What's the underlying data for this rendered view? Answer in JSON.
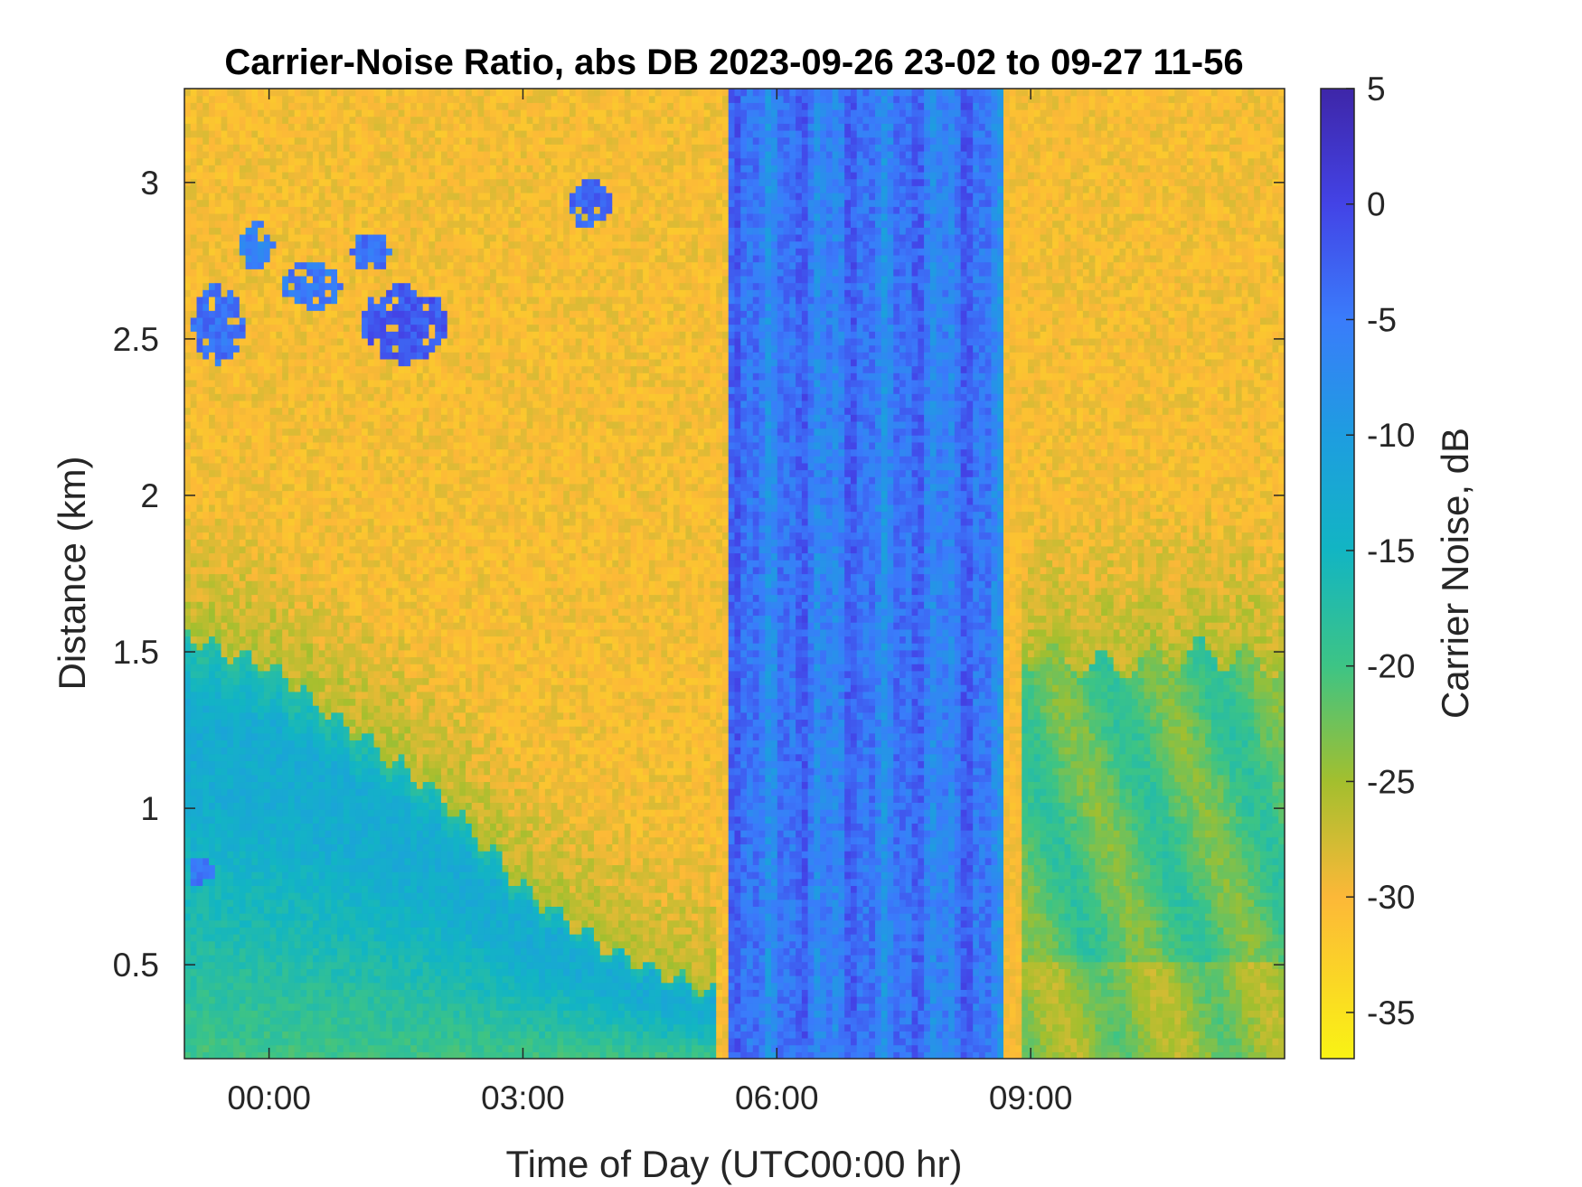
{
  "chart_data": {
    "type": "heatmap",
    "title": "Carrier-Noise Ratio, abs DB 2023-09-26 23-02 to 09-27 11-56",
    "xlabel": "Time of Day (UTC00:00 hr)",
    "ylabel": "Distance (km)",
    "colorbar_label": "Carrier Noise, dB",
    "x_range_hours": [
      -1.0,
      12.0
    ],
    "y_range_km": [
      0.2,
      3.3
    ],
    "clim_db": [
      -37,
      5
    ],
    "x_ticks": [
      {
        "hour": 0,
        "label": "00:00"
      },
      {
        "hour": 3,
        "label": "03:00"
      },
      {
        "hour": 6,
        "label": "06:00"
      },
      {
        "hour": 9,
        "label": "09:00"
      }
    ],
    "y_ticks": [
      {
        "value": 0.5,
        "label": "0.5"
      },
      {
        "value": 1.0,
        "label": "1"
      },
      {
        "value": 1.5,
        "label": "1.5"
      },
      {
        "value": 2.0,
        "label": "2"
      },
      {
        "value": 2.5,
        "label": "2.5"
      },
      {
        "value": 3.0,
        "label": "3"
      }
    ],
    "colorbar_ticks": [
      {
        "value": 5,
        "label": "5"
      },
      {
        "value": 0,
        "label": "0"
      },
      {
        "value": -5,
        "label": "-5"
      },
      {
        "value": -10,
        "label": "-10"
      },
      {
        "value": -15,
        "label": "-15"
      },
      {
        "value": -20,
        "label": "-20"
      },
      {
        "value": -25,
        "label": "-25"
      },
      {
        "value": -30,
        "label": "-30"
      },
      {
        "value": -35,
        "label": "-35"
      }
    ],
    "colormap": "parula",
    "colormap_stops": [
      {
        "value": 5,
        "color": "#3E26A8"
      },
      {
        "value": 0,
        "color": "#4343E6"
      },
      {
        "value": -5,
        "color": "#3A7CFB"
      },
      {
        "value": -10,
        "color": "#1E9DE0"
      },
      {
        "value": -15,
        "color": "#12B5C3"
      },
      {
        "value": -20,
        "color": "#3DC485"
      },
      {
        "value": -25,
        "color": "#A3BF2E"
      },
      {
        "value": -30,
        "color": "#FCB838"
      },
      {
        "value": -37,
        "color": "#F9F314"
      }
    ],
    "background_db": -30,
    "boundary_layer": {
      "note_values": "height of low-CNR layer top (km) vs time (h)",
      "time_h": [
        -1.0,
        0.0,
        1.0,
        2.0,
        3.0,
        4.0,
        5.3
      ],
      "top_km": [
        1.55,
        1.45,
        1.25,
        1.05,
        0.75,
        0.55,
        0.4
      ],
      "core_db": -13,
      "bottom_db": -20
    },
    "blind_period": {
      "start_h": 5.4,
      "end_h": 8.7,
      "typical_db": -5
    },
    "night_return": {
      "start_h": 8.9,
      "end_h": 12.0,
      "time_h": [
        8.9,
        10.0,
        11.0,
        12.0
      ],
      "top_km": [
        1.5,
        1.45,
        1.5,
        1.45
      ],
      "typical_db": -21
    },
    "cloud_patches": [
      {
        "time_h": -0.6,
        "dist_km": 2.55,
        "width_h": 0.6,
        "height_km": 0.25,
        "db": -4
      },
      {
        "time_h": -0.15,
        "dist_km": 2.8,
        "width_h": 0.4,
        "height_km": 0.15,
        "db": -6
      },
      {
        "time_h": 0.5,
        "dist_km": 2.67,
        "width_h": 0.7,
        "height_km": 0.15,
        "db": -5
      },
      {
        "time_h": 1.2,
        "dist_km": 2.78,
        "width_h": 0.45,
        "height_km": 0.12,
        "db": -4
      },
      {
        "time_h": 1.6,
        "dist_km": 2.55,
        "width_h": 1.0,
        "height_km": 0.25,
        "db": -2
      },
      {
        "time_h": 3.8,
        "dist_km": 2.93,
        "width_h": 0.5,
        "height_km": 0.15,
        "db": -3
      },
      {
        "time_h": -0.8,
        "dist_km": 0.8,
        "width_h": 0.3,
        "height_km": 0.1,
        "db": -5
      }
    ]
  }
}
